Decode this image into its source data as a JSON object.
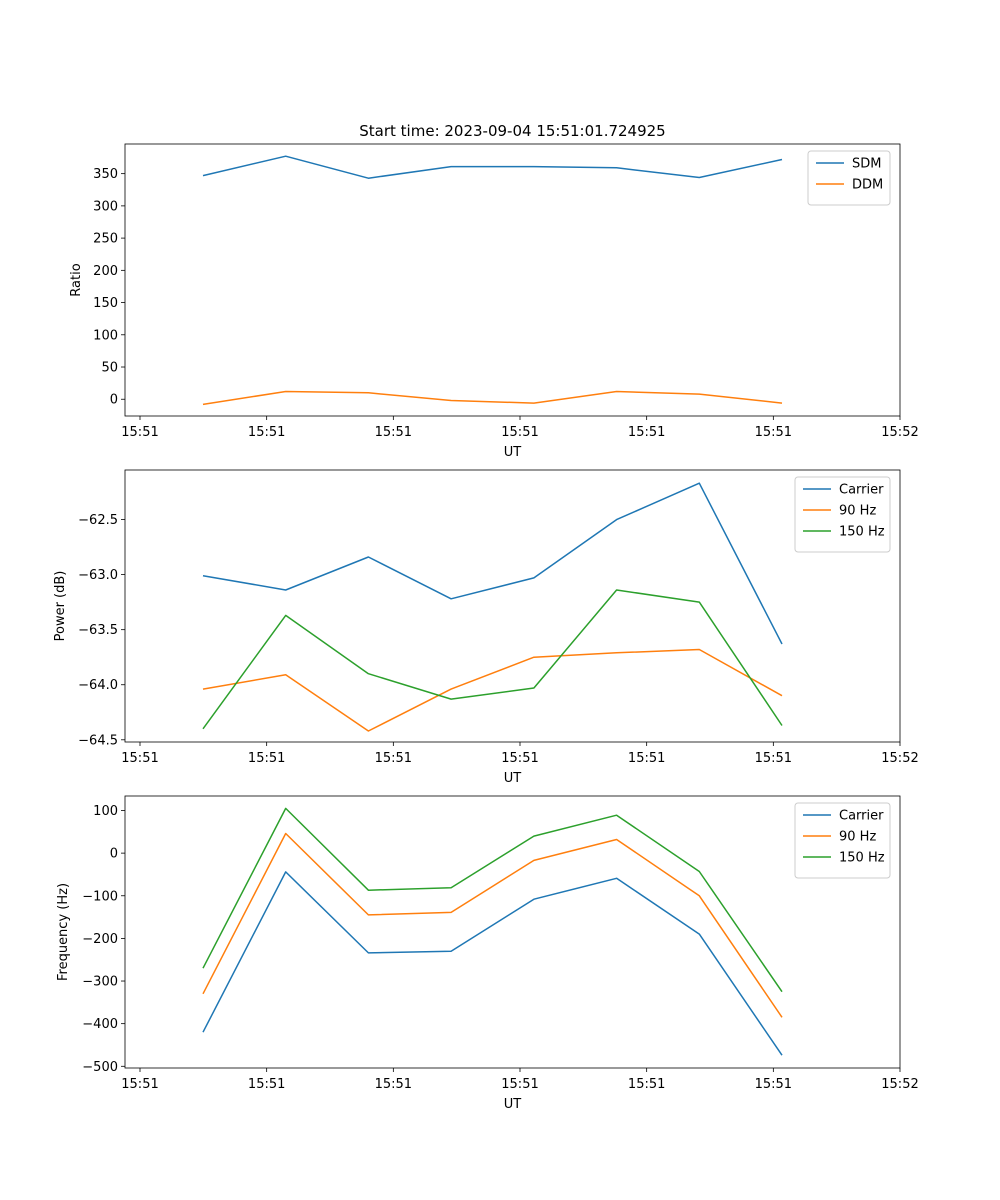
{
  "chart_data": [
    {
      "type": "line",
      "title": "Start time: 2023-09-04 15:51:01.724925",
      "xlabel": "UT",
      "ylabel": "Ratio",
      "xticklabels": [
        "15:51",
        "15:51",
        "15:51",
        "15:51",
        "15:51",
        "15:51",
        "15:52"
      ],
      "yticks": [
        0,
        50,
        100,
        150,
        200,
        250,
        300,
        350
      ],
      "ylim": [
        -26,
        396
      ],
      "legend_loc": "upper right",
      "series": [
        {
          "name": "SDM",
          "color": "#1f77b4",
          "values": [
            347,
            377,
            343,
            361,
            361,
            359,
            344,
            372
          ]
        },
        {
          "name": "DDM",
          "color": "#ff7f0e",
          "values": [
            -8,
            12,
            10,
            -2,
            -6,
            12,
            8,
            -6
          ]
        }
      ]
    },
    {
      "type": "line",
      "title": "",
      "xlabel": "UT",
      "ylabel": "Power (dB)",
      "xticklabels": [
        "15:51",
        "15:51",
        "15:51",
        "15:51",
        "15:51",
        "15:51",
        "15:52"
      ],
      "yticks": [
        -64.5,
        -64.0,
        -63.5,
        -63.0,
        -62.5
      ],
      "ytickformat": 1,
      "ylim": [
        -64.52,
        -62.05
      ],
      "legend_loc": "upper right",
      "series": [
        {
          "name": "Carrier",
          "color": "#1f77b4",
          "values": [
            -63.01,
            -63.14,
            -62.84,
            -63.22,
            -63.03,
            -62.5,
            -62.17,
            -63.63
          ]
        },
        {
          "name": "90 Hz",
          "color": "#ff7f0e",
          "values": [
            -64.04,
            -63.91,
            -64.42,
            -64.04,
            -63.75,
            -63.71,
            -63.68,
            -64.1
          ]
        },
        {
          "name": "150 Hz",
          "color": "#2ca02c",
          "values": [
            -64.4,
            -63.37,
            -63.9,
            -64.13,
            -64.03,
            -63.14,
            -63.25,
            -64.37
          ]
        }
      ]
    },
    {
      "type": "line",
      "title": "",
      "xlabel": "UT",
      "ylabel": "Frequency (Hz)",
      "xticklabels": [
        "15:51",
        "15:51",
        "15:51",
        "15:51",
        "15:51",
        "15:51",
        "15:52"
      ],
      "yticks": [
        -500,
        -400,
        -300,
        -200,
        -100,
        0,
        100
      ],
      "ylim": [
        -504,
        134
      ],
      "legend_loc": "upper right",
      "series": [
        {
          "name": "Carrier",
          "color": "#1f77b4",
          "values": [
            -420,
            -44,
            -234,
            -230,
            -108,
            -59,
            -190,
            -474
          ]
        },
        {
          "name": "90 Hz",
          "color": "#ff7f0e",
          "values": [
            -330,
            46,
            -145,
            -139,
            -17,
            32,
            -100,
            -385
          ]
        },
        {
          "name": "150 Hz",
          "color": "#2ca02c",
          "values": [
            -270,
            105,
            -87,
            -81,
            40,
            89,
            -43,
            -325
          ]
        }
      ]
    }
  ]
}
